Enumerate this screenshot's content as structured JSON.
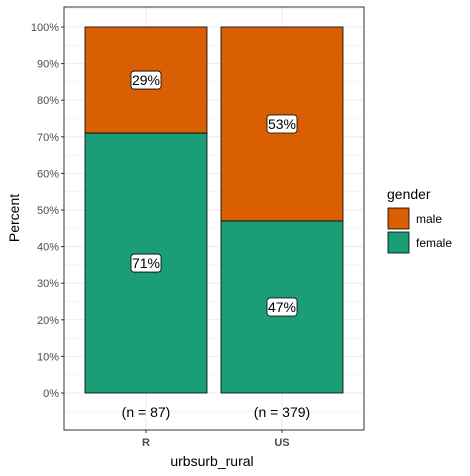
{
  "chart_data": {
    "type": "bar",
    "stacked": true,
    "percent": true,
    "categories": [
      "R",
      "US"
    ],
    "counts": [
      "(n = 87)",
      "(n = 379)"
    ],
    "series": [
      {
        "name": "male",
        "color": "#D95F02",
        "values": [
          29,
          53
        ],
        "labels": [
          "29%",
          "53%"
        ]
      },
      {
        "name": "female",
        "color": "#1B9E77",
        "values": [
          71,
          47
        ],
        "labels": [
          "71%",
          "47%"
        ]
      }
    ],
    "xlabel": "urbsurb_rural",
    "ylabel": "Percent",
    "ylim": [
      0,
      100
    ],
    "yticks": [
      "0%",
      "10%",
      "20%",
      "30%",
      "40%",
      "50%",
      "60%",
      "70%",
      "80%",
      "90%",
      "100%"
    ],
    "legend": {
      "title": "gender",
      "position": "right",
      "items": [
        "male",
        "female"
      ]
    },
    "grid": true
  }
}
